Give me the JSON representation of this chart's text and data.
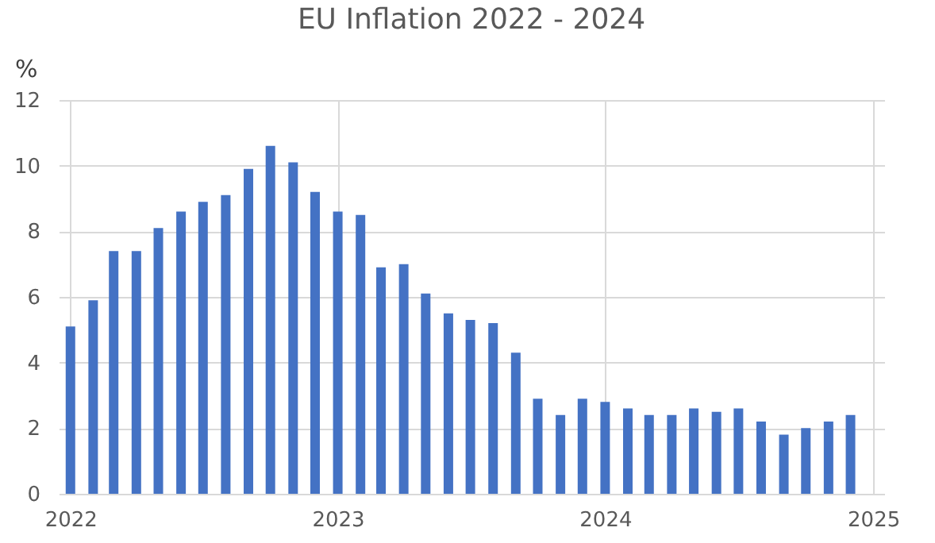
{
  "chart_data": {
    "type": "bar",
    "title": "EU Inflation 2022 - 2024",
    "ylabel": "%",
    "x": [
      "2022-01",
      "2022-02",
      "2022-03",
      "2022-04",
      "2022-05",
      "2022-06",
      "2022-07",
      "2022-08",
      "2022-09",
      "2022-10",
      "2022-11",
      "2022-12",
      "2023-01",
      "2023-02",
      "2023-03",
      "2023-04",
      "2023-05",
      "2023-06",
      "2023-07",
      "2023-08",
      "2023-09",
      "2023-10",
      "2023-11",
      "2023-12",
      "2024-01",
      "2024-02",
      "2024-03",
      "2024-04",
      "2024-05",
      "2024-06",
      "2024-07",
      "2024-08",
      "2024-09",
      "2024-10",
      "2024-11",
      "2024-12"
    ],
    "values": [
      5.1,
      5.9,
      7.4,
      7.4,
      8.1,
      8.6,
      8.9,
      9.1,
      9.9,
      10.6,
      10.1,
      9.2,
      8.6,
      8.5,
      6.9,
      7.0,
      6.1,
      5.5,
      5.3,
      5.2,
      4.3,
      2.9,
      2.4,
      2.9,
      2.8,
      2.6,
      2.4,
      2.4,
      2.6,
      2.5,
      2.6,
      2.2,
      1.8,
      2.0,
      2.2,
      2.4
    ],
    "color": "#4472c4",
    "xlim": [
      "2021-12-16",
      "2025-01-16"
    ],
    "xticks": [
      "2022",
      "2023",
      "2024",
      "2025"
    ],
    "ylim": [
      0,
      12
    ],
    "yticks": [
      0,
      2,
      4,
      6,
      8,
      10,
      12
    ],
    "grid": true
  }
}
